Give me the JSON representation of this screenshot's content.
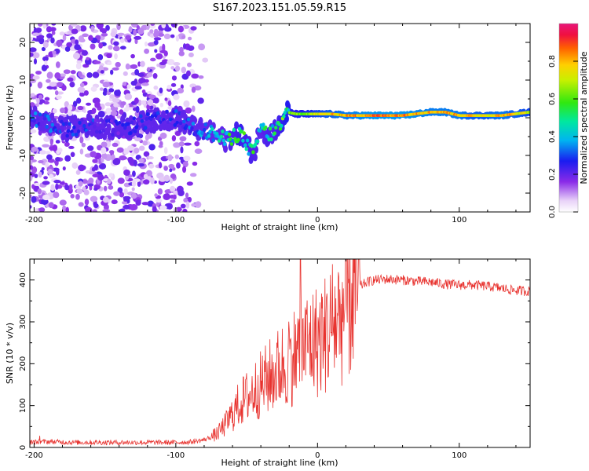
{
  "title": "S167.2023.151.05.59.R15",
  "chart_data": [
    {
      "type": "heatmap",
      "xlabel": "Height of straight line (km)",
      "ylabel": "Frequency (Hz)",
      "xlim": [
        -203,
        150
      ],
      "ylim": [
        -25,
        25
      ],
      "xticks": [
        -200,
        -100,
        0,
        100
      ],
      "xtick_labels": [
        "-200",
        "-100",
        "0",
        "100"
      ],
      "yticks": [
        -20,
        -10,
        0,
        10,
        20
      ],
      "ytick_labels": [
        "-20",
        "-10",
        "0",
        "10",
        "20"
      ],
      "colorbar": {
        "label": "Normalized spectral amplitude",
        "range": [
          0,
          1
        ],
        "ticks": [
          0.0,
          0.2,
          0.4,
          0.6,
          0.8
        ],
        "tick_labels": [
          "0.0",
          "0.2",
          "0.4",
          "0.6",
          "0.8"
        ],
        "colormap": "rainbow (white → violet → blue → cyan → green → yellow → orange → red → magenta)"
      },
      "grid": false,
      "ridge": [
        {
          "x": -200,
          "y": 0,
          "amp": 0.35
        },
        {
          "x": -180,
          "y": -3,
          "amp": 0.3
        },
        {
          "x": -160,
          "y": -2,
          "amp": 0.3
        },
        {
          "x": -140,
          "y": -3,
          "amp": 0.25
        },
        {
          "x": -120,
          "y": -1,
          "amp": 0.3
        },
        {
          "x": -100,
          "y": 0,
          "amp": 0.3
        },
        {
          "x": -85,
          "y": -3,
          "amp": 0.35
        },
        {
          "x": -75,
          "y": -4,
          "amp": 0.45
        },
        {
          "x": -65,
          "y": -6,
          "amp": 0.5
        },
        {
          "x": -55,
          "y": -4,
          "amp": 0.6
        },
        {
          "x": -45,
          "y": -10,
          "amp": 0.55
        },
        {
          "x": -40,
          "y": -2,
          "amp": 0.5
        },
        {
          "x": -35,
          "y": -5,
          "amp": 0.55
        },
        {
          "x": -30,
          "y": -3,
          "amp": 0.55
        },
        {
          "x": -25,
          "y": -2,
          "amp": 0.6
        },
        {
          "x": -22,
          "y": 1.5,
          "amp": 0.65
        },
        {
          "x": -15,
          "y": 1,
          "amp": 0.65
        },
        {
          "x": -5,
          "y": 1,
          "amp": 0.7
        },
        {
          "x": 0,
          "y": 1,
          "amp": 0.75
        },
        {
          "x": 10,
          "y": 1,
          "amp": 0.8
        },
        {
          "x": 20,
          "y": 0.6,
          "amp": 0.85
        },
        {
          "x": 40,
          "y": 0.6,
          "amp": 0.9
        },
        {
          "x": 60,
          "y": 0.6,
          "amp": 0.9
        },
        {
          "x": 80,
          "y": 1.5,
          "amp": 0.85
        },
        {
          "x": 90,
          "y": 1.5,
          "amp": 0.85
        },
        {
          "x": 100,
          "y": 0.6,
          "amp": 0.85
        },
        {
          "x": 110,
          "y": 0.6,
          "amp": 0.8
        },
        {
          "x": 120,
          "y": 0.6,
          "amp": 0.8
        },
        {
          "x": 130,
          "y": 0.6,
          "amp": 0.85
        },
        {
          "x": 150,
          "y": 1.5,
          "amp": 0.75
        }
      ]
    },
    {
      "type": "line",
      "xlabel": "Height of straight line (km)",
      "ylabel": "SNR (10 * v/v)",
      "xlim": [
        -203,
        150
      ],
      "ylim": [
        0,
        450
      ],
      "xticks": [
        -200,
        -100,
        0,
        100
      ],
      "xtick_labels": [
        "-200",
        "-100",
        "0",
        "100"
      ],
      "yticks": [
        0,
        100,
        200,
        300,
        400
      ],
      "ytick_labels": [
        "0",
        "100",
        "200",
        "300",
        "400"
      ],
      "grid": false,
      "color": "#e8332f",
      "series": [
        {
          "x": [
            -203,
            -190,
            -180,
            -170,
            -160,
            -150,
            -140,
            -130,
            -120,
            -110,
            -100,
            -90,
            -80,
            -75,
            -70,
            -65,
            -60,
            -55,
            -50,
            -45,
            -40,
            -35,
            -30,
            -25,
            -20,
            -15,
            -12,
            -10,
            -5,
            0,
            5,
            10,
            15,
            20,
            25,
            30,
            35,
            40,
            50,
            60,
            70,
            80,
            90,
            100,
            110,
            120,
            130,
            140,
            150
          ],
          "y": [
            12,
            14,
            13,
            12,
            12,
            12,
            12,
            12,
            12,
            12,
            12,
            13,
            18,
            25,
            35,
            55,
            80,
            105,
            120,
            135,
            150,
            165,
            180,
            195,
            210,
            225,
            235,
            240,
            250,
            255,
            270,
            290,
            310,
            330,
            365,
            385,
            395,
            400,
            402,
            400,
            397,
            395,
            390,
            388,
            388,
            385,
            380,
            375,
            373
          ]
        }
      ]
    }
  ]
}
